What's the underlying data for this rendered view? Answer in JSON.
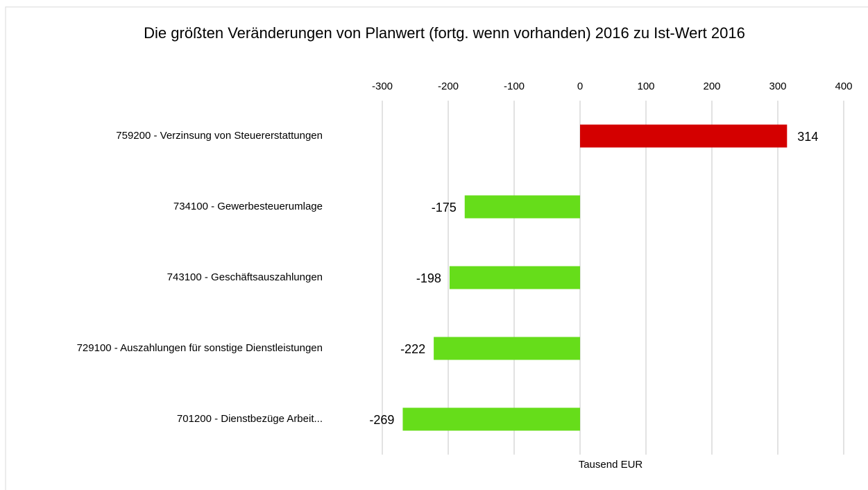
{
  "chart_data": {
    "type": "bar",
    "orientation": "horizontal",
    "title": "Die größten Veränderungen von Planwert (fortg. wenn vorhanden) 2016 zu Ist-Wert 2016",
    "categories": [
      "759200 - Verzinsung von Steuererstattungen",
      "734100 - Gewerbesteuerumlage",
      "743100 - Geschäftsauszahlungen",
      "729100 - Auszahlungen für sonstige Dienstleistungen",
      "701200 - Dienstbezüge Arbeit..."
    ],
    "values": [
      314,
      -175,
      -198,
      -222,
      -269
    ],
    "colors": [
      "#d40000",
      "#66dd1a",
      "#66dd1a",
      "#66dd1a",
      "#66dd1a"
    ],
    "xlabel": "Tausend EUR",
    "xlim": [
      -300,
      400
    ],
    "xticks": [
      -300,
      -200,
      -100,
      0,
      100,
      200,
      300,
      400
    ],
    "grid": true
  }
}
